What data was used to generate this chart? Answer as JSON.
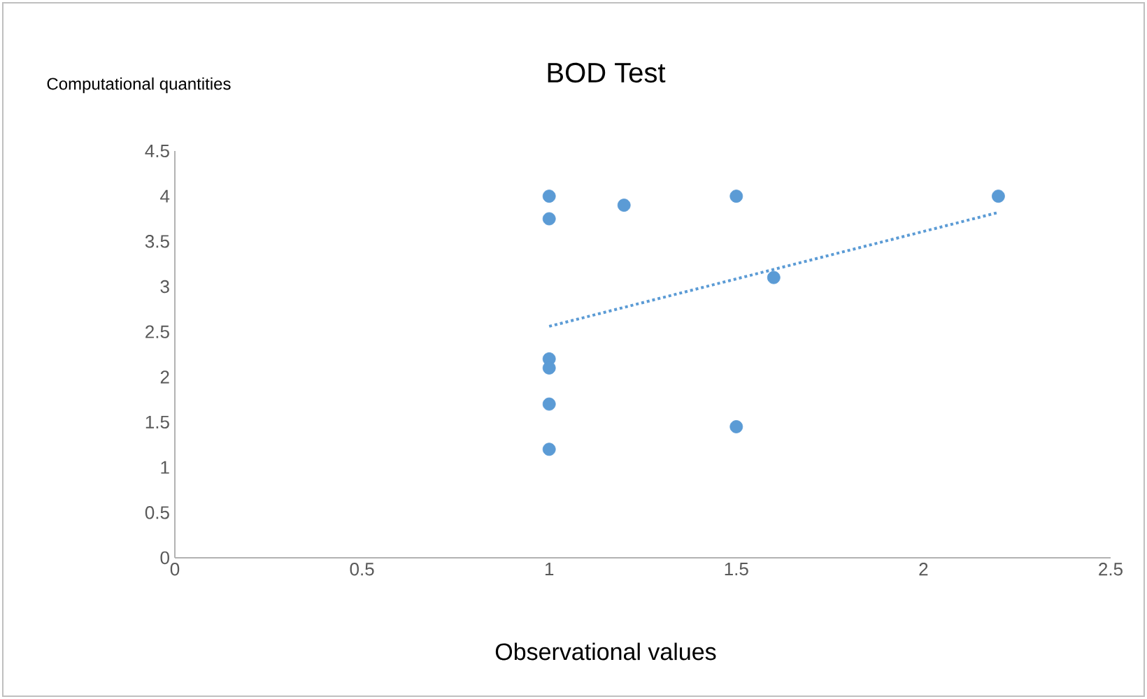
{
  "chart_data": {
    "type": "scatter",
    "title": "BOD Test",
    "xlabel": "Observational values",
    "ylabel": "Computational quantities",
    "xlim": [
      0,
      2.5
    ],
    "ylim": [
      0,
      4.5
    ],
    "xticks": [
      0,
      0.5,
      1,
      1.5,
      2,
      2.5
    ],
    "yticks": [
      0,
      0.5,
      1,
      1.5,
      2,
      2.5,
      3,
      3.5,
      4,
      4.5
    ],
    "series": [
      {
        "marker": "circle",
        "color": "#5b9bd5",
        "x": [
          1,
          1,
          1.2,
          1.5,
          2.2,
          1.6,
          1,
          1,
          1,
          1,
          1.5
        ],
        "values": [
          4,
          3.75,
          3.9,
          4,
          4,
          3.1,
          2.2,
          2.1,
          1.7,
          1.2,
          1.45
        ]
      },
      {
        "type": "line",
        "marker": "none",
        "line_style": "dotted",
        "color": "#5b9bd5",
        "x": [
          1,
          2.2
        ],
        "values": [
          2.56,
          3.82
        ]
      }
    ]
  }
}
